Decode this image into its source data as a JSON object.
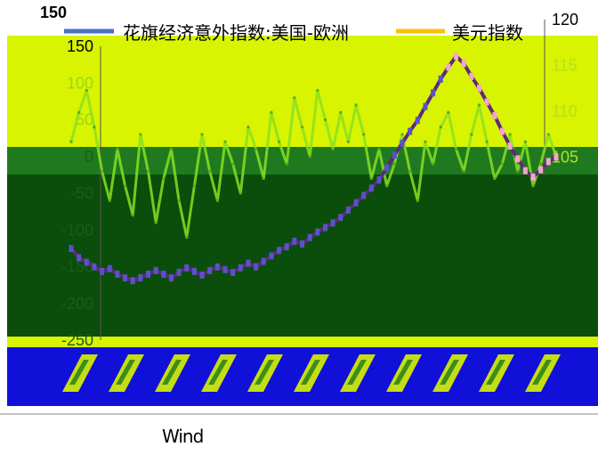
{
  "chart_data": {
    "type": "line",
    "title": "",
    "legend": {
      "placement": "top"
    },
    "series": [
      {
        "name": "花旗经济意外指数:美国-欧洲",
        "color": "#4472c4",
        "axis": "left"
      },
      {
        "name": "美元指数",
        "color": "#ffc000",
        "axis": "right"
      }
    ],
    "y_left": {
      "ticks": [
        "150",
        "100",
        "50",
        "0",
        "-50",
        "-100",
        "-150",
        "-200",
        "-250"
      ],
      "range": [
        -250,
        150
      ]
    },
    "y_right": {
      "ticks": [
        "120",
        "115",
        "110",
        "105"
      ],
      "range": [
        85,
        120
      ]
    },
    "surprise_index": [
      20,
      60,
      90,
      40,
      -20,
      -60,
      10,
      -40,
      -80,
      30,
      -20,
      -90,
      -30,
      10,
      -60,
      -110,
      -40,
      30,
      -20,
      -60,
      20,
      -10,
      -50,
      40,
      10,
      -30,
      60,
      20,
      -10,
      80,
      40,
      0,
      90,
      50,
      10,
      60,
      20,
      70,
      30,
      -30,
      10,
      -40,
      -10,
      30,
      -20,
      -60,
      20,
      -10,
      40,
      60,
      10,
      -20,
      30,
      70,
      20,
      -30,
      -10,
      30,
      -20,
      20,
      -40,
      -10,
      30,
      0
    ],
    "dollar_index": [
      95,
      94,
      93.5,
      93,
      92.5,
      92.8,
      92.2,
      91.8,
      91.5,
      91.8,
      92.2,
      92.6,
      92.2,
      91.8,
      92.4,
      92.9,
      92.5,
      92.1,
      92.6,
      93.0,
      92.7,
      92.4,
      92.9,
      93.4,
      93.0,
      93.6,
      94.2,
      94.8,
      95.2,
      95.8,
      95.5,
      96.2,
      96.8,
      97.3,
      97.8,
      98.4,
      99.2,
      100.0,
      100.8,
      101.6,
      102.5,
      103.8,
      105.2,
      106.5,
      107.8,
      109.0,
      110.5,
      112.0,
      113.5,
      114.8,
      116.0,
      115.2,
      113.8,
      112.5,
      111.0,
      109.5,
      107.8,
      106.2,
      104.8,
      103.5,
      102.8,
      103.6,
      104.5,
      105.0
    ],
    "source": "Wind"
  }
}
